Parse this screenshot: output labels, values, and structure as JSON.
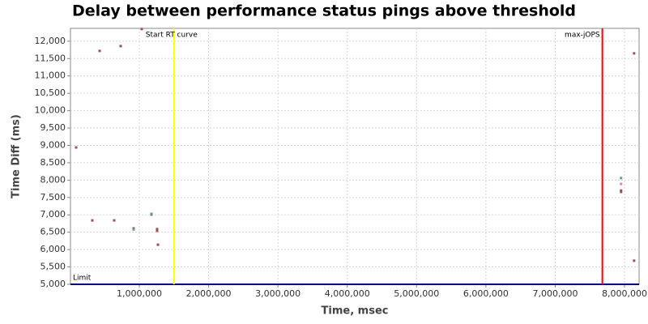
{
  "chart_data": {
    "type": "scatter",
    "title": "Delay between performance status pings above threshold",
    "x_label": "Time, msec",
    "y_label": "Time Diff (ms)",
    "xlim": [
      7000,
      8210000
    ],
    "ylim": [
      5000,
      12370
    ],
    "xticks": [
      {
        "value": 1000000,
        "label": "1,000,000"
      },
      {
        "value": 2000000,
        "label": "2,000,000"
      },
      {
        "value": 3000000,
        "label": "3,000,000"
      },
      {
        "value": 4000000,
        "label": "4,000,000"
      },
      {
        "value": 5000000,
        "label": "5,000,000"
      },
      {
        "value": 6000000,
        "label": "6,000,000"
      },
      {
        "value": 7000000,
        "label": "7,000,000"
      },
      {
        "value": 8000000,
        "label": "8,000,000"
      }
    ],
    "yticks": [
      {
        "value": 5000,
        "label": "5,000"
      },
      {
        "value": 5500,
        "label": "5,500"
      },
      {
        "value": 6000,
        "label": "6,000"
      },
      {
        "value": 6500,
        "label": "6,500"
      },
      {
        "value": 7000,
        "label": "7,000"
      },
      {
        "value": 7500,
        "label": "7,500"
      },
      {
        "value": 8000,
        "label": "8,000"
      },
      {
        "value": 8500,
        "label": "8,500"
      },
      {
        "value": 9000,
        "label": "9,000"
      },
      {
        "value": 9500,
        "label": "9,500"
      },
      {
        "value": 10000,
        "label": "10,000"
      },
      {
        "value": 10500,
        "label": "10,500"
      },
      {
        "value": 11000,
        "label": "11,000"
      },
      {
        "value": 11500,
        "label": "11,500"
      },
      {
        "value": 12000,
        "label": "12,000"
      }
    ],
    "grid": true,
    "series": [
      {
        "color": "#a05050",
        "x": [
          89000,
          322000,
          428000,
          638000,
          731000,
          918000,
          1035000,
          1175000,
          1257000,
          1257000,
          1269000,
          7950000,
          7950000,
          8138000,
          8138000
        ],
        "values": [
          8940,
          6840,
          11720,
          6840,
          11860,
          6610,
          12350,
          7010,
          6590,
          6540,
          6140,
          7700,
          7660,
          11650,
          5680
        ]
      },
      {
        "color": "#5f9ea0",
        "x": [
          1175000,
          7950000,
          918000
        ],
        "values": [
          7030,
          8060,
          6580
        ]
      },
      {
        "color": "#e080c0",
        "x": [
          7950000
        ],
        "values": [
          7890
        ]
      }
    ],
    "vlines": [
      {
        "label": "Start RT curve",
        "x": 1500000,
        "color": "#ffff00"
      },
      {
        "label": "max-jOPS",
        "x": 7680000,
        "color": "#ff0000"
      }
    ],
    "hlines": [
      {
        "label": "Limit",
        "y": 5000,
        "color": "#000080"
      }
    ]
  }
}
